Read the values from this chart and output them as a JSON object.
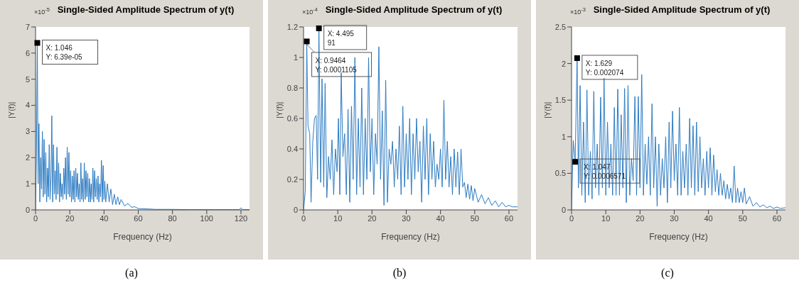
{
  "chart_data": [
    {
      "type": "line",
      "title": "Single-Sided Amplitude Spectrum of y(t)",
      "xlabel": "Frequency (Hz)",
      "ylabel": "|Y(f)|",
      "xlim": [
        0,
        125
      ],
      "xticks": [
        0,
        20,
        40,
        60,
        80,
        100,
        120
      ],
      "ylim": [
        0,
        7
      ],
      "yticks": [
        0,
        1,
        2,
        3,
        4,
        5,
        6,
        7
      ],
      "series": [
        {
          "color": "#2c7bc2",
          "x": [
            0,
            0.5,
            1.046,
            1.5,
            2,
            2.5,
            3,
            3.5,
            4,
            4.5,
            5,
            5.5,
            6,
            6.5,
            7,
            7.5,
            8,
            8.5,
            9,
            9.5,
            10,
            10.5,
            11,
            11.5,
            12,
            12.5,
            13,
            13.5,
            14,
            14.5,
            15,
            15.5,
            16,
            16.5,
            17,
            17.5,
            18,
            18.5,
            19,
            19.5,
            20,
            20.5,
            21,
            21.5,
            22,
            22.5,
            23,
            23.5,
            24,
            24.5,
            25,
            25.5,
            26,
            26.5,
            27,
            27.5,
            28,
            28.5,
            29,
            29.5,
            30,
            30.5,
            31,
            31.5,
            32,
            32.5,
            33,
            33.5,
            34,
            34.5,
            35,
            35.5,
            36,
            36.5,
            37,
            37.5,
            38,
            38.5,
            39,
            39.5,
            40,
            40.5,
            41,
            42,
            43,
            44,
            45,
            46,
            47,
            48,
            49,
            50,
            52,
            54,
            56,
            58,
            60,
            65,
            70,
            80,
            90,
            100,
            110,
            119,
            120,
            121,
            125
          ],
          "values": [
            0,
            2,
            6.39,
            1,
            3.3,
            0.3,
            2,
            0.8,
            3,
            0.5,
            2.7,
            0.6,
            2.2,
            0.3,
            1.6,
            0.5,
            2.5,
            0.4,
            1.2,
            3.6,
            0.3,
            2.5,
            0.6,
            1.5,
            0.4,
            2.4,
            0.6,
            1.8,
            0.3,
            1.4,
            0.5,
            1,
            0.4,
            1.6,
            0.6,
            2,
            0.4,
            2.4,
            0.6,
            2.2,
            0.5,
            1.5,
            0.3,
            1.3,
            0.4,
            1.5,
            0.3,
            1.6,
            0.5,
            1.4,
            0.4,
            1,
            0.3,
            1.8,
            0.4,
            1.2,
            0.3,
            1.8,
            0.4,
            1.5,
            0.5,
            1.4,
            0.3,
            1.2,
            0.3,
            1,
            0.4,
            1.6,
            0.3,
            1.5,
            0.5,
            1.2,
            0.4,
            1.3,
            0.3,
            1,
            0.5,
            1.9,
            0.3,
            1.7,
            0.4,
            1.1,
            0.3,
            1,
            0.3,
            0.8,
            0.2,
            0.6,
            0.2,
            0.5,
            0.2,
            0.4,
            0.15,
            0.25,
            0.1,
            0.12,
            0.05,
            0.04,
            0.02,
            0.02,
            0.01,
            0.01,
            0.01,
            0.01,
            0.08,
            0.01,
            0.01
          ]
        }
      ],
      "annotations": [
        "×10$^{-5}$",
        "(a)",
        {
          "text": "X: 1.046\nY: 6.39e-05",
          "x": 1.046,
          "y": 6.39
        }
      ]
    },
    {
      "type": "line",
      "title": "Single-Sided Amplitude Spectrum of y(t)",
      "xlabel": "Frequency (Hz)",
      "ylabel": "|Y(f)|",
      "xlim": [
        0,
        62.5
      ],
      "xticks": [
        0,
        10,
        20,
        30,
        40,
        50,
        60
      ],
      "ylim": [
        0,
        1.2
      ],
      "yticks": [
        0,
        0.2,
        0.4,
        0.6,
        0.8,
        1,
        1.2
      ],
      "series": [
        {
          "color": "#2c7bc2",
          "x": [
            0,
            0.5,
            0.9464,
            1.3,
            1.8,
            2.2,
            2.7,
            3.2,
            3.7,
            4.1,
            4.495,
            5,
            5.4,
            5.9,
            6.3,
            6.8,
            7.3,
            7.8,
            8.3,
            8.8,
            9.3,
            9.8,
            10.2,
            10.6,
            11,
            11.5,
            12,
            12.5,
            13,
            13.5,
            14,
            14.5,
            15,
            15.5,
            16,
            16.5,
            17,
            17.5,
            18,
            18.5,
            19,
            19.5,
            20,
            20.5,
            21,
            21.5,
            22,
            22.5,
            23,
            23.5,
            24,
            24.5,
            25,
            25.5,
            26,
            26.5,
            27,
            27.5,
            28,
            28.5,
            29,
            29.5,
            30,
            30.5,
            31,
            31.5,
            32,
            32.5,
            33,
            33.5,
            34,
            34.5,
            35,
            35.5,
            36,
            36.5,
            37,
            37.5,
            38,
            38.5,
            39,
            39.5,
            40,
            40.5,
            41,
            41.5,
            42,
            42.5,
            43,
            43.5,
            44,
            44.5,
            45,
            45.5,
            46,
            46.5,
            47,
            47.5,
            48,
            48.5,
            49,
            49.5,
            50,
            51,
            52,
            53,
            54,
            55,
            56,
            57,
            58,
            59,
            60,
            61,
            62.5
          ],
          "values": [
            0,
            0.12,
            1.105,
            0.55,
            0.5,
            0.05,
            0.45,
            0.6,
            0.62,
            0.2,
            1.191,
            0.18,
            0.86,
            0.15,
            0.83,
            0.08,
            0.35,
            0.2,
            0.46,
            0.1,
            0.4,
            0.25,
            0.6,
            0.1,
            0.9,
            0.35,
            0.5,
            0.1,
            0.66,
            0.05,
            0.68,
            0.2,
            1,
            0.1,
            0.6,
            0.15,
            0.8,
            0.1,
            0.6,
            0.2,
            1,
            0.25,
            0.6,
            0.1,
            0.5,
            0.3,
            1.07,
            0.2,
            0.65,
            0.03,
            0.85,
            0.05,
            0.4,
            0.3,
            0.45,
            0.15,
            0.4,
            0.2,
            0.55,
            0.1,
            0.68,
            0.15,
            0.5,
            0.2,
            0.6,
            0.1,
            0.5,
            0.2,
            0.6,
            0.25,
            0.45,
            0.05,
            0.55,
            0.2,
            0.6,
            0.1,
            0.5,
            0.2,
            0.45,
            0.15,
            0.3,
            0.2,
            0.4,
            0.15,
            0.72,
            0.2,
            0.45,
            0.15,
            0.35,
            0.1,
            0.4,
            0.15,
            0.38,
            0.1,
            0.4,
            0.15,
            0.18,
            0.08,
            0.17,
            0.07,
            0.16,
            0.06,
            0.14,
            0.05,
            0.1,
            0.04,
            0.08,
            0.03,
            0.06,
            0.02,
            0.05,
            0.02,
            0.03,
            0.02,
            0.02
          ]
        }
      ],
      "annotations": [
        "×10$^{-4}$",
        "(b)",
        {
          "text": "X: 4.495\n91",
          "x": 4.495,
          "y": 1.191
        },
        {
          "text": "X: 0.9464\nY: 0.0001105",
          "x": 0.9464,
          "y": 1.105
        }
      ]
    },
    {
      "type": "line",
      "title": "Single-Sided Amplitude Spectrum of y(t)",
      "xlabel": "Frequency (Hz)",
      "ylabel": "|Y(f)|",
      "xlim": [
        0,
        62.5
      ],
      "xticks": [
        0,
        10,
        20,
        30,
        40,
        50,
        60
      ],
      "ylim": [
        0,
        2.5
      ],
      "yticks": [
        0,
        0.5,
        1,
        1.5,
        2,
        2.5
      ],
      "series": [
        {
          "color": "#2c7bc2",
          "x": [
            0,
            0.5,
            1.047,
            1.629,
            2,
            2.5,
            3,
            3.5,
            4,
            4.5,
            5,
            5.5,
            6,
            6.5,
            7,
            7.5,
            8,
            8.5,
            9,
            9.5,
            10,
            10.5,
            11,
            11.5,
            12,
            12.5,
            13,
            13.5,
            14,
            14.5,
            15,
            15.5,
            16,
            16.5,
            17,
            17.5,
            18,
            18.5,
            19,
            19.5,
            20,
            20.5,
            21,
            21.5,
            22,
            22.5,
            23,
            23.5,
            24,
            24.5,
            25,
            25.5,
            26,
            26.5,
            27,
            27.5,
            28,
            28.5,
            29,
            29.5,
            30,
            30.5,
            31,
            31.5,
            32,
            32.5,
            33,
            33.5,
            34,
            34.5,
            35,
            35.5,
            36,
            36.5,
            37,
            37.5,
            38,
            38.5,
            39,
            39.5,
            40,
            40.5,
            41,
            41.5,
            42,
            42.5,
            43,
            43.5,
            44,
            44.5,
            45,
            45.5,
            46,
            46.5,
            47,
            47.5,
            48,
            48.5,
            49,
            49.5,
            50,
            50.5,
            51,
            52,
            53,
            54,
            55,
            56,
            57,
            58,
            59,
            60,
            61,
            62.5
          ],
          "values": [
            0,
            0.95,
            0.6571,
            2.074,
            0.3,
            1.7,
            0.2,
            1.2,
            0.1,
            1.64,
            0.2,
            0.8,
            0.15,
            1.62,
            0.3,
            0.9,
            0.2,
            1.54,
            0.3,
            1.8,
            0.2,
            1.2,
            0.3,
            0.9,
            0.2,
            1.4,
            0.2,
            1.65,
            0.2,
            1.3,
            0.3,
            1.66,
            0.1,
            1.7,
            0.2,
            0.7,
            0.4,
            1.55,
            0.2,
            1.55,
            0.3,
            1.85,
            0.2,
            0.9,
            0.35,
            1,
            0.2,
            1.45,
            0.3,
            1,
            0.05,
            0.9,
            0.2,
            0.7,
            0.3,
            1,
            0.1,
            1.2,
            0.3,
            1.35,
            0.4,
            0.9,
            0.2,
            1.4,
            0.2,
            0.8,
            0.3,
            0.9,
            0.2,
            1.25,
            0.3,
            1.15,
            0.2,
            1.2,
            0.25,
            1,
            0.3,
            0.7,
            0.2,
            0.8,
            0.3,
            0.85,
            0.2,
            0.75,
            0.25,
            0.55,
            0.2,
            0.5,
            0.2,
            0.4,
            0.15,
            0.35,
            0.15,
            0.3,
            0.1,
            0.6,
            0.1,
            0.3,
            0.1,
            0.25,
            0.1,
            0.3,
            0.08,
            0.18,
            0.05,
            0.1,
            0.04,
            0.07,
            0.03,
            0.05,
            0.02,
            0.04,
            0.02,
            0.03
          ]
        }
      ],
      "annotations": [
        "×10$^{-3}$",
        "(c)",
        {
          "text": "X: 1.047\nY: 0.0006571",
          "x": 1.047,
          "y": 0.6571
        },
        {
          "text": "X: 1.629\nY: 0.002074",
          "x": 1.629,
          "y": 2.074
        }
      ]
    }
  ]
}
